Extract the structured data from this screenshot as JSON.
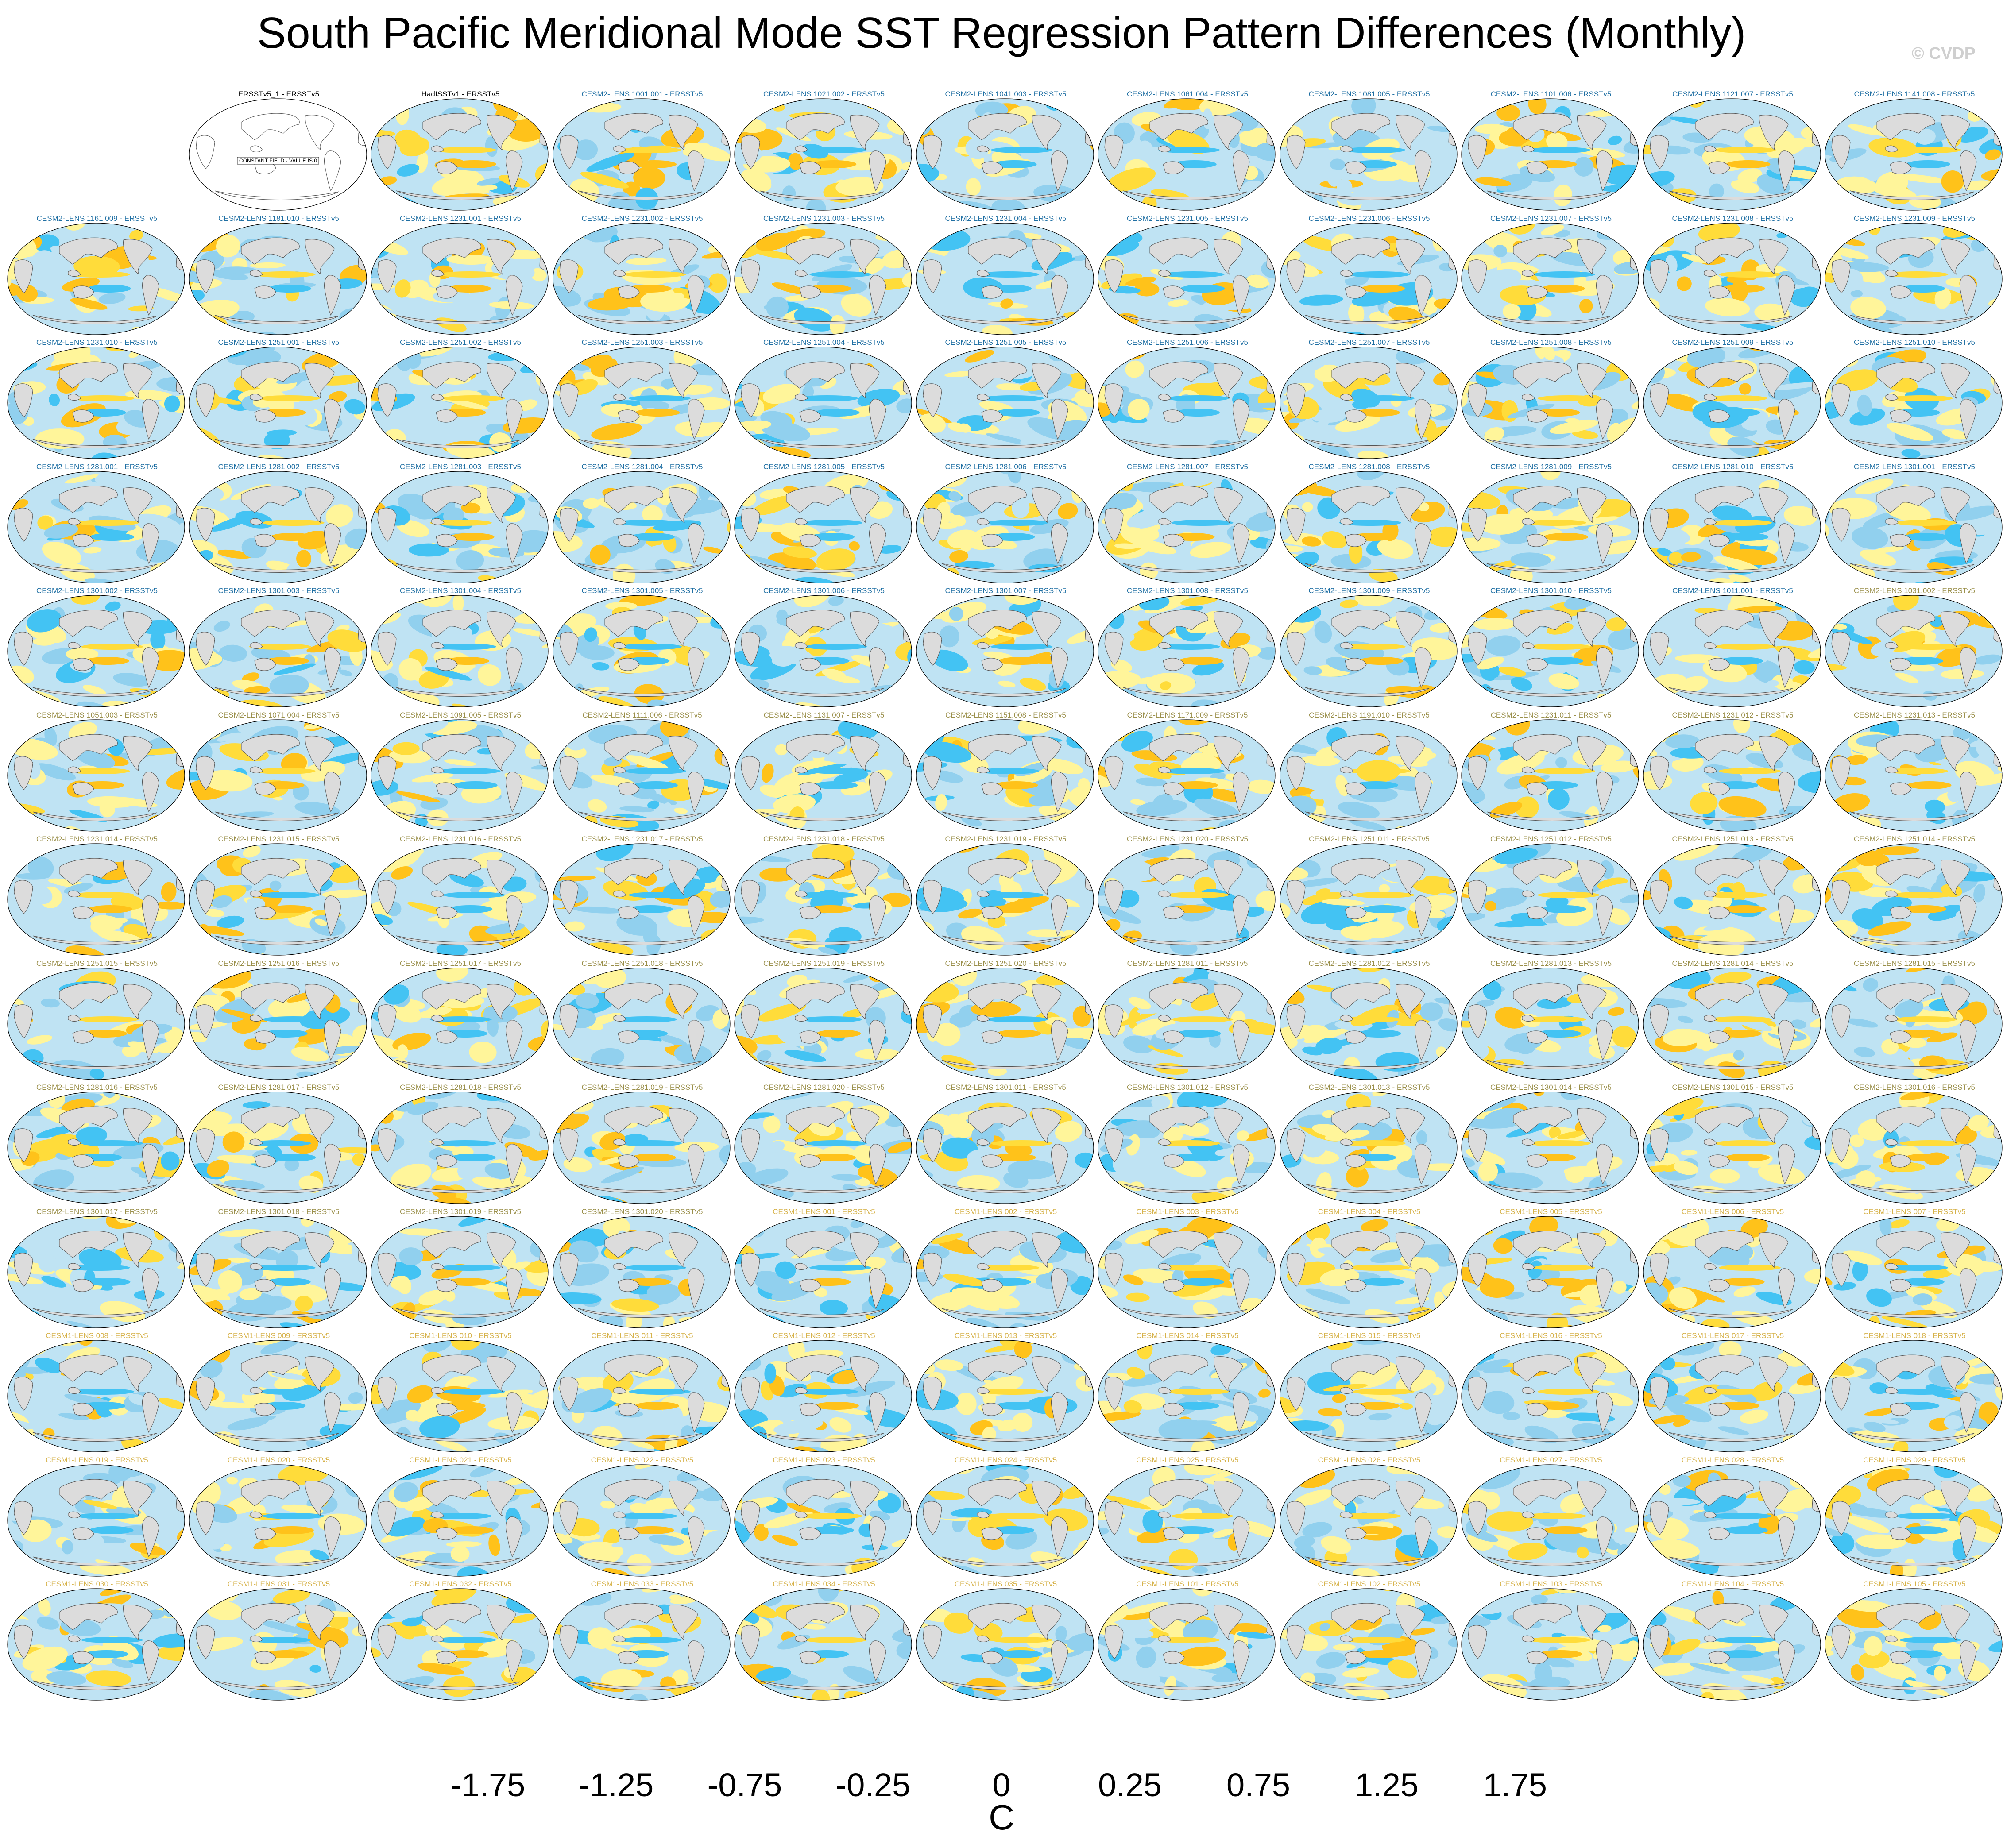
{
  "title": "South Pacific Meridional Mode SST Regression Pattern Differences (Monthly)",
  "watermark": "© CVDP",
  "constant_field_note": "CONSTANT FIELD - VALUE IS 0",
  "colors": {
    "obs_title": "#000000",
    "cesm2_title": "#1f6fa3",
    "cesm2_title_late": "#9a8f4a",
    "cesm1_title": "#d6b24a",
    "land": "#dcdcdc",
    "coast": "#555555"
  },
  "colorbar": {
    "label": "C",
    "ticks": [
      "-1.75",
      "-1.25",
      "-0.75",
      "-0.25",
      "0",
      "0.25",
      "0.75",
      "1.25",
      "1.75"
    ],
    "colors": [
      "#7b2be0",
      "#3b1cf0",
      "#1a2ef5",
      "#3a5fe0",
      "#2f7de8",
      "#2196f3",
      "#0eb0f8",
      "#43c3f3",
      "#91d0ee",
      "#bfe3f3",
      "#fff59a",
      "#ffdc3a",
      "#ffc21a",
      "#ffa200",
      "#ff7a00",
      "#ff4a10",
      "#ff0000",
      "#d40000",
      "#d83a3a",
      "#ffb3b3"
    ]
  },
  "chart_data": {
    "type": "map_panel_grid",
    "title": "South Pacific Meridional Mode SST Regression Pattern Differences (Monthly)",
    "units": "C",
    "colorbar_ticks": [
      -1.75,
      -1.25,
      -0.75,
      -0.25,
      0,
      0.25,
      0.75,
      1.25,
      1.75
    ],
    "panels": [
      "ERSSTv5_1 - ERSSTv5",
      "HadISSTv1 - ERSSTv5",
      "CESM2-LENS 1001.001 - ERSSTv5",
      "CESM2-LENS 1021.002 - ERSSTv5",
      "CESM2-LENS 1041.003 - ERSSTv5",
      "CESM2-LENS 1061.004 - ERSSTv5",
      "CESM2-LENS 1081.005 - ERSSTv5",
      "CESM2-LENS 1101.006 - ERSSTv5",
      "CESM2-LENS 1121.007 - ERSSTv5",
      "CESM2-LENS 1141.008 - ERSSTv5",
      "CESM2-LENS 1161.009 - ERSSTv5",
      "CESM2-LENS 1181.010 - ERSSTv5",
      "CESM2-LENS 1231.001 - ERSSTv5",
      "CESM2-LENS 1231.002 - ERSSTv5",
      "CESM2-LENS 1231.003 - ERSSTv5",
      "CESM2-LENS 1231.004 - ERSSTv5",
      "CESM2-LENS 1231.005 - ERSSTv5",
      "CESM2-LENS 1231.006 - ERSSTv5",
      "CESM2-LENS 1231.007 - ERSSTv5",
      "CESM2-LENS 1231.008 - ERSSTv5",
      "CESM2-LENS 1231.009 - ERSSTv5",
      "CESM2-LENS 1231.010 - ERSSTv5",
      "CESM2-LENS 1251.001 - ERSSTv5",
      "CESM2-LENS 1251.002 - ERSSTv5",
      "CESM2-LENS 1251.003 - ERSSTv5",
      "CESM2-LENS 1251.004 - ERSSTv5",
      "CESM2-LENS 1251.005 - ERSSTv5",
      "CESM2-LENS 1251.006 - ERSSTv5",
      "CESM2-LENS 1251.007 - ERSSTv5",
      "CESM2-LENS 1251.008 - ERSSTv5",
      "CESM2-LENS 1251.009 - ERSSTv5",
      "CESM2-LENS 1251.010 - ERSSTv5",
      "CESM2-LENS 1281.001 - ERSSTv5",
      "CESM2-LENS 1281.002 - ERSSTv5",
      "CESM2-LENS 1281.003 - ERSSTv5",
      "CESM2-LENS 1281.004 - ERSSTv5",
      "CESM2-LENS 1281.005 - ERSSTv5",
      "CESM2-LENS 1281.006 - ERSSTv5",
      "CESM2-LENS 1281.007 - ERSSTv5",
      "CESM2-LENS 1281.008 - ERSSTv5",
      "CESM2-LENS 1281.009 - ERSSTv5",
      "CESM2-LENS 1281.010 - ERSSTv5",
      "CESM2-LENS 1301.001 - ERSSTv5",
      "CESM2-LENS 1301.002 - ERSSTv5",
      "CESM2-LENS 1301.003 - ERSSTv5",
      "CESM2-LENS 1301.004 - ERSSTv5",
      "CESM2-LENS 1301.005 - ERSSTv5",
      "CESM2-LENS 1301.006 - ERSSTv5",
      "CESM2-LENS 1301.007 - ERSSTv5",
      "CESM2-LENS 1301.008 - ERSSTv5",
      "CESM2-LENS 1301.009 - ERSSTv5",
      "CESM2-LENS 1301.010 - ERSSTv5",
      "CESM2-LENS 1011.001 - ERSSTv5",
      "CESM2-LENS 1031.002 - ERSSTv5",
      "CESM2-LENS 1051.003 - ERSSTv5",
      "CESM2-LENS 1071.004 - ERSSTv5",
      "CESM2-LENS 1091.005 - ERSSTv5",
      "CESM2-LENS 1111.006 - ERSSTv5",
      "CESM2-LENS 1131.007 - ERSSTv5",
      "CESM2-LENS 1151.008 - ERSSTv5",
      "CESM2-LENS 1171.009 - ERSSTv5",
      "CESM2-LENS 1191.010 - ERSSTv5",
      "CESM2-LENS 1231.011 - ERSSTv5",
      "CESM2-LENS 1231.012 - ERSSTv5",
      "CESM2-LENS 1231.013 - ERSSTv5",
      "CESM2-LENS 1231.014 - ERSSTv5",
      "CESM2-LENS 1231.015 - ERSSTv5",
      "CESM2-LENS 1231.016 - ERSSTv5",
      "CESM2-LENS 1231.017 - ERSSTv5",
      "CESM2-LENS 1231.018 - ERSSTv5",
      "CESM2-LENS 1231.019 - ERSSTv5",
      "CESM2-LENS 1231.020 - ERSSTv5",
      "CESM2-LENS 1251.011 - ERSSTv5",
      "CESM2-LENS 1251.012 - ERSSTv5",
      "CESM2-LENS 1251.013 - ERSSTv5",
      "CESM2-LENS 1251.014 - ERSSTv5",
      "CESM2-LENS 1251.015 - ERSSTv5",
      "CESM2-LENS 1251.016 - ERSSTv5",
      "CESM2-LENS 1251.017 - ERSSTv5",
      "CESM2-LENS 1251.018 - ERSSTv5",
      "CESM2-LENS 1251.019 - ERSSTv5",
      "CESM2-LENS 1251.020 - ERSSTv5",
      "CESM2-LENS 1281.011 - ERSSTv5",
      "CESM2-LENS 1281.012 - ERSSTv5",
      "CESM2-LENS 1281.013 - ERSSTv5",
      "CESM2-LENS 1281.014 - ERSSTv5",
      "CESM2-LENS 1281.015 - ERSSTv5",
      "CESM2-LENS 1281.016 - ERSSTv5",
      "CESM2-LENS 1281.017 - ERSSTv5",
      "CESM2-LENS 1281.018 - ERSSTv5",
      "CESM2-LENS 1281.019 - ERSSTv5",
      "CESM2-LENS 1281.020 - ERSSTv5",
      "CESM2-LENS 1301.011 - ERSSTv5",
      "CESM2-LENS 1301.012 - ERSSTv5",
      "CESM2-LENS 1301.013 - ERSSTv5",
      "CESM2-LENS 1301.014 - ERSSTv5",
      "CESM2-LENS 1301.015 - ERSSTv5",
      "CESM2-LENS 1301.016 - ERSSTv5",
      "CESM2-LENS 1301.017 - ERSSTv5",
      "CESM2-LENS 1301.018 - ERSSTv5",
      "CESM2-LENS 1301.019 - ERSSTv5",
      "CESM2-LENS 1301.020 - ERSSTv5",
      "CESM1-LENS 001 - ERSSTv5",
      "CESM1-LENS 002 - ERSSTv5",
      "CESM1-LENS 003 - ERSSTv5",
      "CESM1-LENS 004 - ERSSTv5",
      "CESM1-LENS 005 - ERSSTv5",
      "CESM1-LENS 006 - ERSSTv5",
      "CESM1-LENS 007 - ERSSTv5",
      "CESM1-LENS 008 - ERSSTv5",
      "CESM1-LENS 009 - ERSSTv5",
      "CESM1-LENS 010 - ERSSTv5",
      "CESM1-LENS 011 - ERSSTv5",
      "CESM1-LENS 012 - ERSSTv5",
      "CESM1-LENS 013 - ERSSTv5",
      "CESM1-LENS 014 - ERSSTv5",
      "CESM1-LENS 015 - ERSSTv5",
      "CESM1-LENS 016 - ERSSTv5",
      "CESM1-LENS 017 - ERSSTv5",
      "CESM1-LENS 018 - ERSSTv5",
      "CESM1-LENS 019 - ERSSTv5",
      "CESM1-LENS 020 - ERSSTv5",
      "CESM1-LENS 021 - ERSSTv5",
      "CESM1-LENS 022 - ERSSTv5",
      "CESM1-LENS 023 - ERSSTv5",
      "CESM1-LENS 024 - ERSSTv5",
      "CESM1-LENS 025 - ERSSTv5",
      "CESM1-LENS 026 - ERSSTv5",
      "CESM1-LENS 027 - ERSSTv5",
      "CESM1-LENS 028 - ERSSTv5",
      "CESM1-LENS 029 - ERSSTv5",
      "CESM1-LENS 030 - ERSSTv5",
      "CESM1-LENS 031 - ERSSTv5",
      "CESM1-LENS 032 - ERSSTv5",
      "CESM1-LENS 033 - ERSSTv5",
      "CESM1-LENS 034 - ERSSTv5",
      "CESM1-LENS 035 - ERSSTv5",
      "CESM1-LENS 101 - ERSSTv5",
      "CESM1-LENS 102 - ERSSTv5",
      "CESM1-LENS 103 - ERSSTv5",
      "CESM1-LENS 104 - ERSSTv5",
      "CESM1-LENS 105 - ERSSTv5"
    ]
  }
}
